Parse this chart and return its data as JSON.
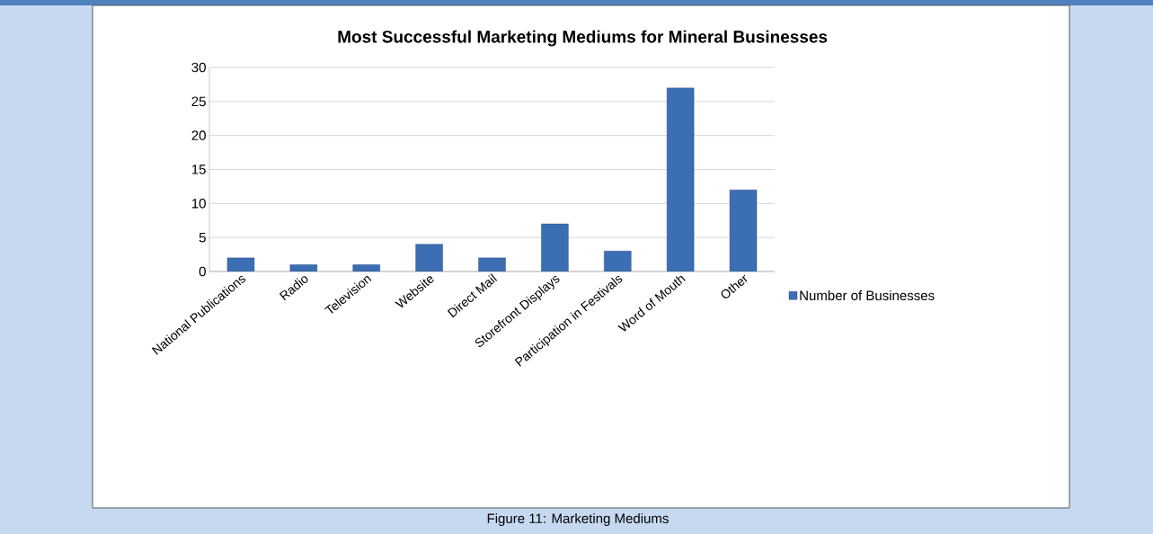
{
  "chart_data": {
    "type": "bar",
    "title": "Most Successful Marketing Mediums for Mineral Businesses",
    "categories": [
      "National Publications",
      "Radio",
      "Television",
      "Website",
      "Direct Mail",
      "Storefront Displays",
      "Participation in Festivals",
      "Word of Mouth",
      "Other"
    ],
    "series": [
      {
        "name": "Number of Businesses",
        "color": "#3c6eb4",
        "values": [
          2,
          1,
          1,
          4,
          2,
          7,
          3,
          27,
          12
        ]
      }
    ],
    "ylim": [
      0,
      30
    ],
    "yticks": [
      0,
      5,
      10,
      15,
      20,
      25,
      30
    ],
    "grid": "y",
    "legend": "right",
    "annotations": [
      "Figure 11: Marketing Mediums"
    ]
  }
}
